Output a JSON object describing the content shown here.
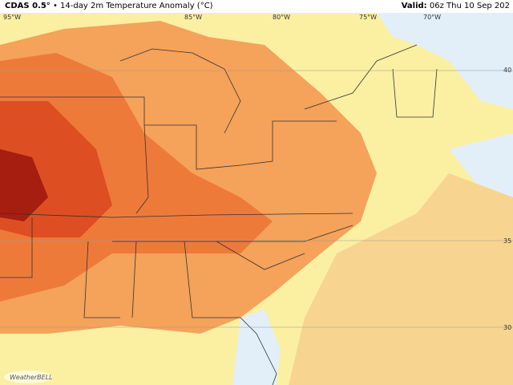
{
  "header": {
    "model": "CDAS 0.5°",
    "title": "14-day 2m Temperature Anomaly (°C)",
    "valid_label": "Valid:",
    "valid_time": "06z Thu 10 Sep 202"
  },
  "longitude_labels": [
    "95°W",
    "85°W",
    "80°W",
    "75°W",
    "70°W"
  ],
  "latitude_labels": [
    "40",
    "35",
    "30"
  ],
  "watermark": "WeatherBELL"
}
